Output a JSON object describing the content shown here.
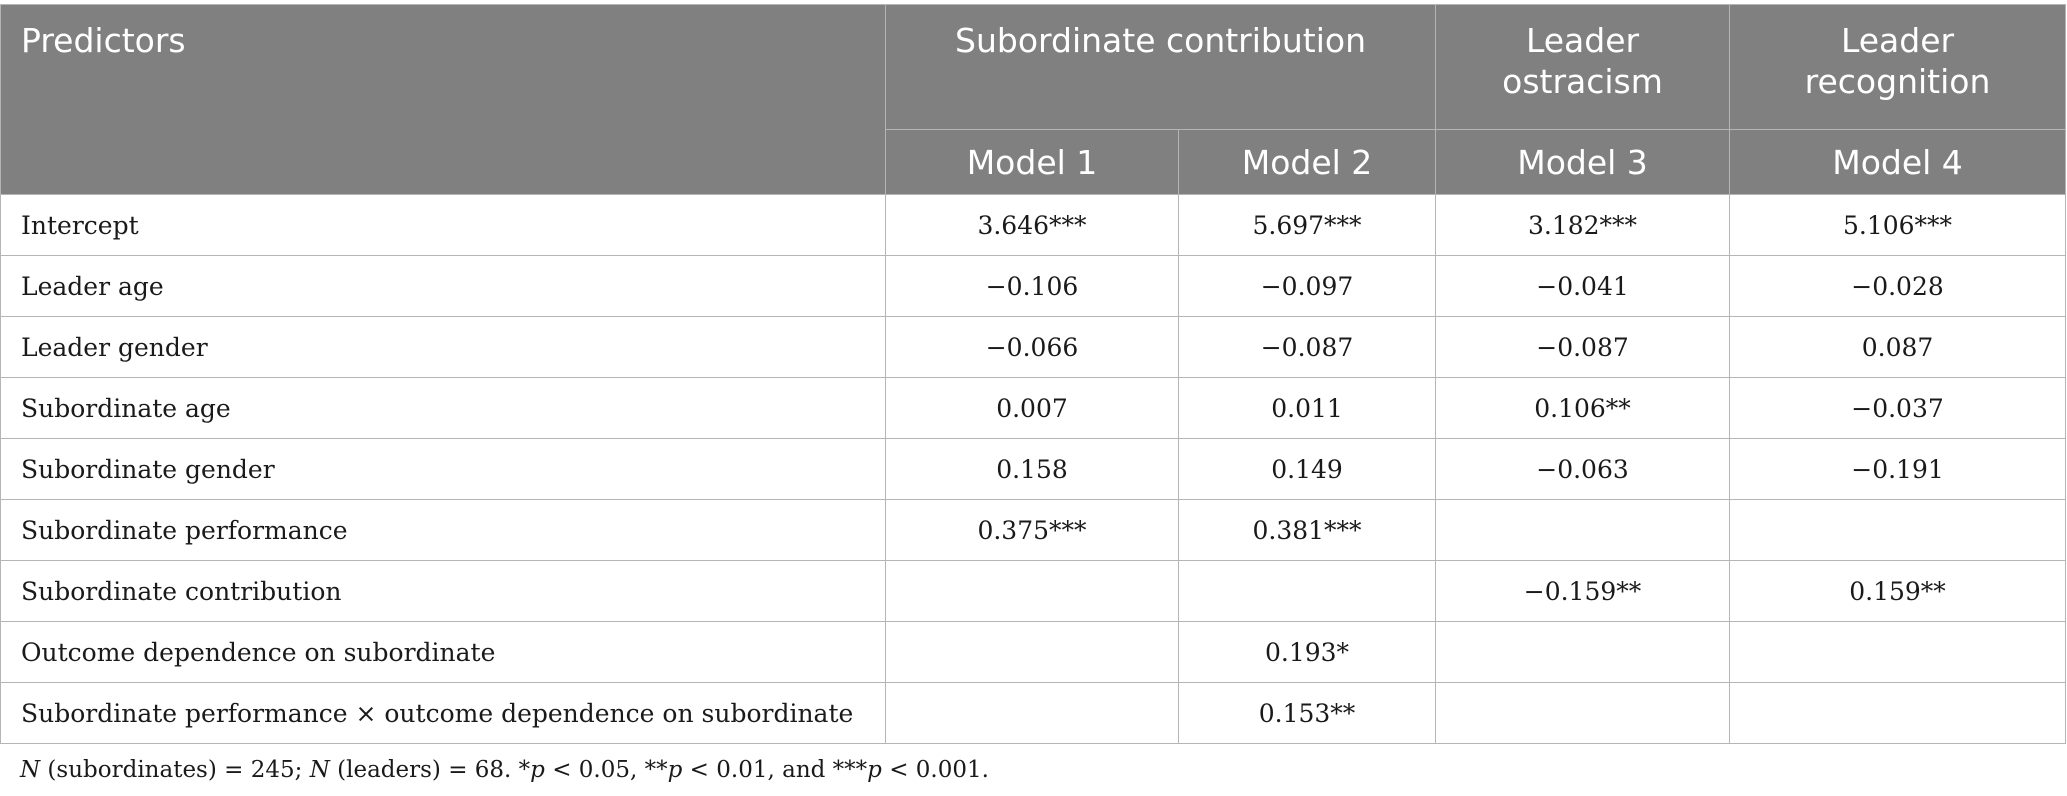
{
  "header": {
    "predictors": "Predictors",
    "group_subordinate_contribution": "Subordinate contribution",
    "group_leader_ostracism": [
      "Leader",
      "ostracism"
    ],
    "group_leader_recognition": [
      "Leader",
      "recognition"
    ],
    "models": [
      "Model 1",
      "Model 2",
      "Model 3",
      "Model 4"
    ]
  },
  "rows": [
    {
      "label": "Intercept",
      "values": [
        "3.646***",
        "5.697***",
        "3.182***",
        "5.106***"
      ]
    },
    {
      "label": "Leader age",
      "values": [
        "−0.106",
        "−0.097",
        "−0.041",
        "−0.028"
      ]
    },
    {
      "label": "Leader gender",
      "values": [
        "−0.066",
        "−0.087",
        "−0.087",
        "0.087"
      ]
    },
    {
      "label": "Subordinate age",
      "values": [
        "0.007",
        "0.011",
        "0.106**",
        "−0.037"
      ]
    },
    {
      "label": "Subordinate gender",
      "values": [
        "0.158",
        "0.149",
        "−0.063",
        "−0.191"
      ]
    },
    {
      "label": "Subordinate performance",
      "values": [
        "0.375***",
        "0.381***",
        "",
        ""
      ]
    },
    {
      "label": "Subordinate contribution",
      "values": [
        "",
        "",
        "−0.159**",
        "0.159**"
      ]
    },
    {
      "label": "Outcome dependence on subordinate",
      "values": [
        "",
        "0.193*",
        "",
        ""
      ]
    },
    {
      "label": "Subordinate performance × outcome dependence on subordinate",
      "values": [
        "",
        "0.153**",
        "",
        ""
      ]
    }
  ],
  "note": {
    "n1_label": "N",
    "n1_text": " (subordinates) = 245; ",
    "n2_label": "N",
    "n2_text": " (leaders) = 68. *",
    "p1": "p",
    "p1_text": " < 0.05, **",
    "p2": "p",
    "p2_text": " < 0.01, and ***",
    "p3": "p",
    "p3_text": " < 0.001."
  }
}
